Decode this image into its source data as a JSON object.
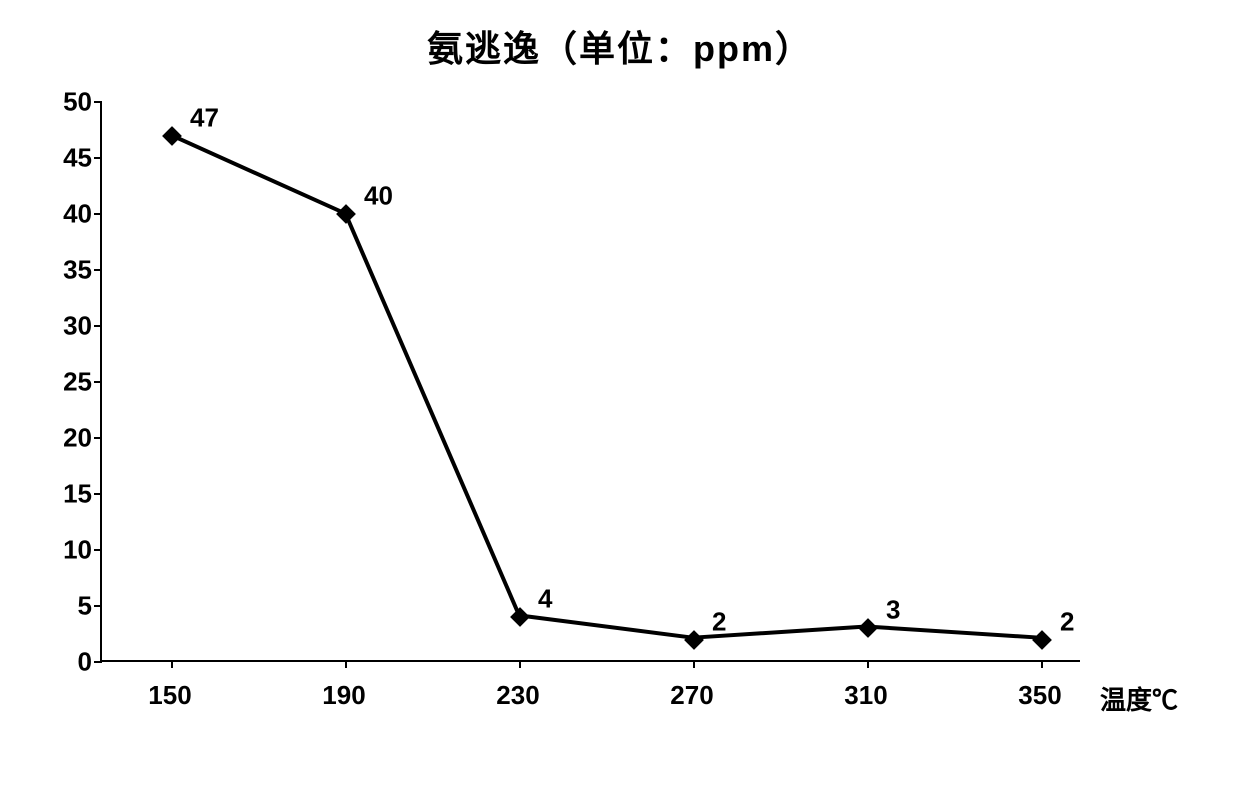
{
  "chart": {
    "type": "line",
    "title": "氨逃逸（单位：ppm）",
    "title_fontsize": 36,
    "x_axis_title": "温度℃",
    "x_axis_title_fontsize": 26,
    "x_categories": [
      "150",
      "190",
      "230",
      "270",
      "310",
      "350"
    ],
    "x_tick_fontsize": 26,
    "y_ticks": [
      0,
      5,
      10,
      15,
      20,
      25,
      30,
      35,
      40,
      45,
      50
    ],
    "y_tick_fontsize": 26,
    "ylim": [
      0,
      50
    ],
    "values": [
      47,
      40,
      4,
      2,
      3,
      2
    ],
    "data_label_fontsize": 26,
    "line_color": "#000000",
    "line_width": 4,
    "marker_type": "diamond",
    "marker_size": 14,
    "marker_color": "#000000",
    "background_color": "#ffffff",
    "axis_color": "#000000",
    "text_color": "#000000"
  }
}
